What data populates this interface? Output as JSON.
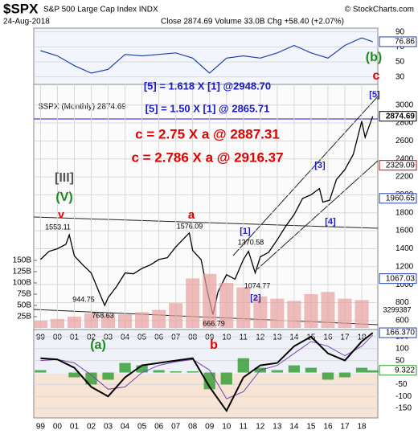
{
  "header": {
    "symbol": "$SPX",
    "name": "S&P 500 Large Cap Index INDX",
    "date": "24-Aug-2018",
    "quote": "Close 2874.69  Volume 33.0B  Chg +58.40 (+2.07%)",
    "source": "© StockCharts.com"
  },
  "chart_data": [
    {
      "type": "line",
      "panel": "rsi",
      "x": [
        1999,
        2000,
        2001,
        2002,
        2003,
        2004,
        2005,
        2006,
        2007,
        2008,
        2009,
        2010,
        2011,
        2012,
        2013,
        2014,
        2015,
        2016,
        2017,
        2018,
        2018.65
      ],
      "values": [
        65,
        58,
        45,
        35,
        40,
        60,
        58,
        60,
        62,
        55,
        35,
        55,
        58,
        55,
        62,
        72,
        62,
        55,
        72,
        82,
        76.86
      ],
      "color": "#1f3fb0",
      "ylim": [
        20,
        95
      ],
      "yticks": [
        30,
        50,
        70,
        90
      ],
      "last_label": 76.86
    },
    {
      "type": "line",
      "panel": "price",
      "legend": "$SPX (Monthly) 2874.69",
      "x": [
        1999,
        1999.5,
        2000,
        2000.5,
        2000.7,
        2001,
        2001.5,
        2002,
        2002.5,
        2002.8,
        2003,
        2003.5,
        2004,
        2004.5,
        2005,
        2005.5,
        2006,
        2006.5,
        2007,
        2007.8,
        2008,
        2008.5,
        2008.9,
        2009.2,
        2009.5,
        2010,
        2010.5,
        2011,
        2011.3,
        2011.7,
        2012,
        2012.5,
        2013,
        2013.5,
        2014,
        2014.5,
        2015,
        2015.5,
        2015.7,
        2016.1,
        2016.5,
        2017,
        2017.5,
        2018,
        2018.2,
        2018.65
      ],
      "values": [
        1280,
        1370,
        1400,
        1450,
        1553.11,
        1320,
        1220,
        1130,
        900,
        768.63,
        855,
        980,
        1130,
        1120,
        1180,
        1220,
        1280,
        1300,
        1420,
        1576.09,
        1380,
        1280,
        900,
        666.79,
        920,
        1110,
        1060,
        1280,
        1370.58,
        1130,
        1310,
        1360,
        1500,
        1650,
        1780,
        1960,
        2000,
        2070,
        1920,
        1940,
        2170,
        2280,
        2450,
        2820,
        2640,
        2874.69
      ],
      "color": "#000000",
      "xlim": [
        1998.6,
        2018.95
      ],
      "xticks": [
        {
          "value": 1999,
          "label": "99"
        },
        {
          "value": 2000,
          "label": "00"
        },
        {
          "value": 2001,
          "label": "01"
        },
        {
          "value": 2002,
          "label": "02"
        },
        {
          "value": 2003,
          "label": "03"
        },
        {
          "value": 2004,
          "label": "04"
        },
        {
          "value": 2005,
          "label": "05"
        },
        {
          "value": 2006,
          "label": "06"
        },
        {
          "value": 2007,
          "label": "07"
        },
        {
          "value": 2008,
          "label": "08"
        },
        {
          "value": 2009,
          "label": "09"
        },
        {
          "value": 2010,
          "label": "10"
        },
        {
          "value": 2011,
          "label": "11"
        },
        {
          "value": 2012,
          "label": "12"
        },
        {
          "value": 2013,
          "label": "13"
        },
        {
          "value": 2014,
          "label": "14"
        },
        {
          "value": 2015,
          "label": "15"
        },
        {
          "value": 2016,
          "label": "16"
        },
        {
          "value": 2017,
          "label": "17"
        },
        {
          "value": 2018,
          "label": "18"
        }
      ],
      "ylim": [
        500,
        3230
      ],
      "yticks": [
        600,
        800,
        1000,
        1200,
        1400,
        1600,
        1800,
        2000,
        2200,
        2400,
        2600,
        2800,
        3000
      ],
      "last_labels": [
        {
          "value": 2874.69,
          "color": "#000000"
        },
        {
          "value": 2329.09,
          "color": "#e00000"
        },
        {
          "value": 1960.65,
          "color": "#1f3fb0"
        },
        {
          "value": 1067.03,
          "color": "#1f3fb0"
        }
      ],
      "grid": true
    },
    {
      "type": "bar",
      "panel": "volume",
      "x": [
        1999,
        2000,
        2001,
        2002,
        2003,
        2004,
        2005,
        2006,
        2007,
        2008,
        2009,
        2010,
        2011,
        2012,
        2013,
        2014,
        2015,
        2016,
        2017,
        2018
      ],
      "values": [
        16,
        20,
        25,
        32,
        30,
        30,
        35,
        40,
        55,
        110,
        120,
        100,
        90,
        70,
        65,
        60,
        75,
        80,
        65,
        62
      ],
      "color": "#e8a0a0",
      "ylim": [
        0,
        175
      ],
      "yticks": [
        {
          "value": 25,
          "label": "25B"
        },
        {
          "value": 50,
          "label": "50B"
        },
        {
          "value": 75,
          "label": "75B"
        },
        {
          "value": 100,
          "label": "100B"
        },
        {
          "value": 125,
          "label": "125B"
        },
        {
          "value": 150,
          "label": "150B"
        }
      ]
    },
    {
      "type": "macd",
      "panel": "macd",
      "x": [
        1999,
        2000,
        2001,
        2002,
        2003,
        2004,
        2005,
        2006,
        2007,
        2008,
        2009,
        2010,
        2011,
        2012,
        2013,
        2014,
        2015,
        2016,
        2017,
        2018,
        2018.65
      ],
      "series": [
        {
          "name": "MACD",
          "color": "#000000",
          "values": [
            60,
            55,
            20,
            -60,
            -100,
            -20,
            30,
            40,
            50,
            60,
            -60,
            -160,
            -20,
            30,
            40,
            110,
            150,
            80,
            50,
            130,
            166.37
          ],
          "value_labels": [
            null,
            null,
            null,
            null,
            null,
            null,
            null,
            null,
            null,
            null,
            null,
            null,
            null,
            null,
            null,
            null,
            null,
            null,
            null,
            null,
            "166.370"
          ]
        },
        {
          "name": "Signal",
          "color": "#7a3fb0",
          "values": [
            50,
            55,
            40,
            -10,
            -70,
            -60,
            0,
            30,
            45,
            55,
            10,
            -110,
            -80,
            10,
            30,
            80,
            130,
            110,
            70,
            110,
            157.05
          ]
        },
        {
          "name": "Histogram",
          "color": "#2e9a2e",
          "values": [
            10,
            0,
            -20,
            -50,
            -30,
            40,
            30,
            10,
            5,
            5,
            -70,
            -50,
            60,
            20,
            10,
            30,
            20,
            -30,
            -20,
            20,
            9.322
          ]
        }
      ],
      "ylim": [
        -190,
        180
      ],
      "yticks": [
        150,
        100,
        50,
        -50,
        -100,
        -150
      ]
    }
  ],
  "annotations": [
    {
      "text": "[5] = 1.618 X [1] @2948.70",
      "color": "#1a1acc"
    },
    {
      "text": "[5] = 1.50 X [1] @ 2865.71",
      "color": "#1a1acc"
    },
    {
      "text": "c = 2.75 X a @ 2887.31",
      "color": "#e00000"
    },
    {
      "text": "c = 2.786 X a @ 2916.37",
      "color": "#e00000"
    },
    {
      "text": "[III]",
      "color": "#555555"
    },
    {
      "text": "(V)",
      "color": "#1a8a1a"
    },
    {
      "text": "v",
      "color": "#e00000"
    },
    {
      "text": "1553.11",
      "color": "#000000"
    },
    {
      "text": "a",
      "color": "#e00000"
    },
    {
      "text": "1576.09",
      "color": "#000000"
    },
    {
      "text": "[1]",
      "color": "#1a1acc"
    },
    {
      "text": "1370.58",
      "color": "#000000"
    },
    {
      "text": "944.75",
      "color": "#000000"
    },
    {
      "text": "768.63",
      "color": "#000000"
    },
    {
      "text": "666.79",
      "color": "#000000"
    },
    {
      "text": "1074.77",
      "color": "#000000"
    },
    {
      "text": "[2]",
      "color": "#1a1acc"
    },
    {
      "text": "[3]",
      "color": "#1a1acc"
    },
    {
      "text": "[4]",
      "color": "#1a1acc"
    },
    {
      "text": "[5]",
      "color": "#1a1acc"
    },
    {
      "text": "(b)",
      "color": "#1a8a1a"
    },
    {
      "text": "c",
      "color": "#e00000"
    },
    {
      "text": "(a)",
      "color": "#1a8a1a"
    },
    {
      "text": "b",
      "color": "#e00000"
    },
    {
      "text": "3299387",
      "color": "#000000"
    }
  ]
}
